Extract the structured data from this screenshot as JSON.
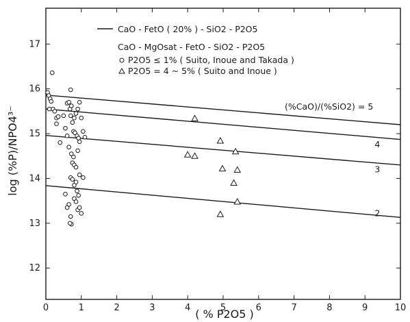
{
  "chart_data": {
    "type": "scatter",
    "xlabel": "( % P2O5 )",
    "ylabel": "log (%P)/NPO4³⁻",
    "xlim": [
      0,
      10
    ],
    "ylim": [
      11.3,
      17.8
    ],
    "x_ticks": [
      "0",
      "1",
      "2",
      "3",
      "4",
      "5",
      "6",
      "7",
      "8",
      "9",
      "10"
    ],
    "y_ticks": [
      "12",
      "13",
      "14",
      "15",
      "16",
      "17"
    ],
    "x_tick_values": [
      0,
      1,
      2,
      3,
      4,
      5,
      6,
      7,
      8,
      9,
      10
    ],
    "y_tick_values": [
      12,
      13,
      14,
      15,
      16,
      17
    ],
    "grid": false,
    "legend": {
      "line_entry": "CaO - FetO ( 20% ) - SiO2 - P2O5",
      "group_title": "CaO - MgOsat - FetO - SiO2 - P2O5",
      "circle_entry": "P2O5 ≤ 1% ( Suito, Inoue and Takada )",
      "triangle_entry": "P2O5 = 4 ~ 5% ( Suito and Inoue )"
    },
    "annotation": "(%CaO)/(%SiO2) = 5",
    "lines": [
      {
        "label": "5",
        "x": [
          0,
          10
        ],
        "y": [
          15.86,
          15.2
        ],
        "label_at": [
          10,
          15.2
        ]
      },
      {
        "label": "4",
        "x": [
          0,
          10
        ],
        "y": [
          15.55,
          14.87
        ],
        "label_at": [
          9.35,
          14.76
        ]
      },
      {
        "label": "3",
        "x": [
          0,
          10
        ],
        "y": [
          14.96,
          14.3
        ],
        "label_at": [
          9.35,
          14.2
        ]
      },
      {
        "label": "2",
        "x": [
          0,
          10
        ],
        "y": [
          13.84,
          13.13
        ],
        "label_at": [
          9.35,
          13.22
        ]
      }
    ],
    "series": [
      {
        "name": "P2O5 ≤ 1% ( Suito, Inoue and Takada )",
        "marker": "circle",
        "points": [
          [
            0.05,
            15.92
          ],
          [
            0.08,
            15.85
          ],
          [
            0.12,
            15.78
          ],
          [
            0.18,
            16.36
          ],
          [
            0.2,
            15.55
          ],
          [
            0.25,
            15.5
          ],
          [
            0.1,
            15.55
          ],
          [
            0.15,
            15.72
          ],
          [
            0.3,
            15.35
          ],
          [
            0.35,
            15.38
          ],
          [
            0.3,
            15.22
          ],
          [
            0.4,
            14.8
          ],
          [
            0.5,
            15.4
          ],
          [
            0.55,
            15.12
          ],
          [
            0.6,
            15.68
          ],
          [
            0.65,
            15.7
          ],
          [
            0.7,
            15.98
          ],
          [
            0.68,
            15.55
          ],
          [
            0.72,
            15.62
          ],
          [
            0.7,
            15.4
          ],
          [
            0.75,
            15.25
          ],
          [
            0.8,
            15.35
          ],
          [
            0.85,
            15.45
          ],
          [
            0.9,
            15.55
          ],
          [
            0.95,
            15.7
          ],
          [
            0.78,
            15.05
          ],
          [
            0.82,
            15.02
          ],
          [
            0.88,
            14.95
          ],
          [
            0.92,
            14.9
          ],
          [
            1.0,
            15.35
          ],
          [
            1.05,
            15.05
          ],
          [
            1.1,
            14.92
          ],
          [
            0.6,
            14.95
          ],
          [
            0.65,
            14.7
          ],
          [
            0.72,
            14.55
          ],
          [
            0.78,
            14.48
          ],
          [
            0.75,
            14.35
          ],
          [
            0.8,
            14.3
          ],
          [
            0.85,
            14.25
          ],
          [
            0.9,
            14.62
          ],
          [
            0.95,
            14.82
          ],
          [
            0.7,
            14.02
          ],
          [
            0.75,
            13.98
          ],
          [
            0.8,
            13.85
          ],
          [
            0.85,
            13.92
          ],
          [
            0.95,
            14.08
          ],
          [
            1.05,
            14.02
          ],
          [
            0.55,
            13.65
          ],
          [
            0.6,
            13.35
          ],
          [
            0.65,
            13.42
          ],
          [
            0.7,
            13.15
          ],
          [
            0.72,
            12.98
          ],
          [
            0.68,
            13.0
          ],
          [
            0.8,
            13.55
          ],
          [
            0.85,
            13.48
          ],
          [
            0.9,
            13.3
          ],
          [
            0.95,
            13.35
          ],
          [
            1.0,
            13.22
          ],
          [
            0.88,
            13.72
          ],
          [
            0.92,
            13.62
          ]
        ]
      },
      {
        "name": "P2O5 = 4 ~ 5% ( Suito and Inoue )",
        "marker": "triangle",
        "points": [
          [
            4.2,
            15.34
          ],
          [
            4.0,
            14.53
          ],
          [
            4.2,
            14.5
          ],
          [
            4.92,
            14.84
          ],
          [
            4.98,
            14.22
          ],
          [
            5.35,
            14.6
          ],
          [
            5.4,
            14.19
          ],
          [
            5.3,
            13.9
          ],
          [
            5.4,
            13.48
          ],
          [
            4.92,
            13.2
          ]
        ]
      }
    ]
  }
}
